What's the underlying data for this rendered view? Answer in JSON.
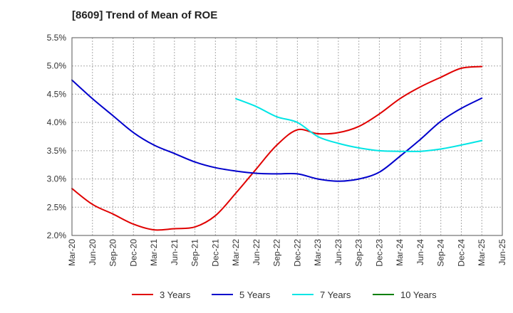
{
  "chart_data": {
    "type": "line",
    "title": "[8609]  Trend of Mean of ROE",
    "xlabel": "",
    "ylabel": "",
    "ylim": [
      2.0,
      5.5
    ],
    "y_ticks": [
      "2.0%",
      "2.5%",
      "3.0%",
      "3.5%",
      "4.0%",
      "4.5%",
      "5.0%",
      "5.5%"
    ],
    "y_tick_values": [
      2.0,
      2.5,
      3.0,
      3.5,
      4.0,
      4.5,
      5.0,
      5.5
    ],
    "categories": [
      "Mar-20",
      "Jun-20",
      "Sep-20",
      "Dec-20",
      "Mar-21",
      "Jun-21",
      "Sep-21",
      "Dec-21",
      "Mar-22",
      "Jun-22",
      "Sep-22",
      "Dec-22",
      "Mar-23",
      "Jun-23",
      "Sep-23",
      "Dec-23",
      "Mar-24",
      "Jun-24",
      "Sep-24",
      "Dec-24",
      "Mar-25",
      "Jun-25"
    ],
    "grid": true,
    "legend_position": "bottom",
    "series": [
      {
        "name": "3 Years",
        "color": "#e00000",
        "values": [
          2.83,
          2.55,
          2.38,
          2.2,
          2.1,
          2.12,
          2.15,
          2.35,
          2.75,
          3.18,
          3.6,
          3.87,
          3.8,
          3.82,
          3.93,
          4.15,
          4.42,
          4.63,
          4.8,
          4.96,
          4.99,
          null
        ]
      },
      {
        "name": "5 Years",
        "color": "#0000cc",
        "values": [
          4.75,
          4.42,
          4.12,
          3.82,
          3.6,
          3.45,
          3.3,
          3.2,
          3.14,
          3.1,
          3.09,
          3.09,
          3.0,
          2.96,
          3.0,
          3.12,
          3.4,
          3.7,
          4.02,
          4.25,
          4.43,
          null
        ]
      },
      {
        "name": "7 Years",
        "color": "#00e5e5",
        "values": [
          null,
          null,
          null,
          null,
          null,
          null,
          null,
          null,
          4.42,
          4.28,
          4.1,
          4.0,
          3.75,
          3.63,
          3.55,
          3.5,
          3.49,
          3.49,
          3.53,
          3.6,
          3.68,
          null
        ]
      },
      {
        "name": "10 Years",
        "color": "#008000",
        "values": [
          null,
          null,
          null,
          null,
          null,
          null,
          null,
          null,
          null,
          null,
          null,
          null,
          null,
          null,
          null,
          null,
          null,
          null,
          null,
          null,
          null,
          null
        ]
      }
    ]
  }
}
